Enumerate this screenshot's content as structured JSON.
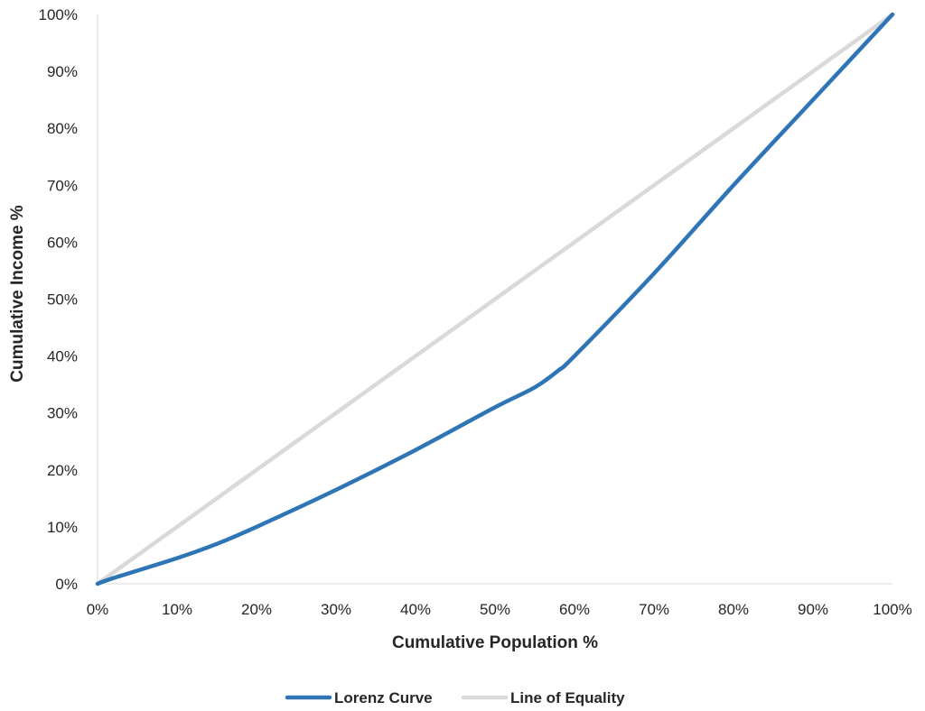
{
  "chart_data": {
    "type": "line",
    "title": "",
    "xlabel": "Cumulative Population %",
    "ylabel": "Cumulative Income %",
    "xlim": [
      0,
      100
    ],
    "ylim": [
      0,
      100
    ],
    "x_ticks": [
      "0%",
      "10%",
      "20%",
      "30%",
      "40%",
      "50%",
      "60%",
      "70%",
      "80%",
      "90%",
      "100%"
    ],
    "y_ticks": [
      "0%",
      "10%",
      "20%",
      "30%",
      "40%",
      "50%",
      "60%",
      "70%",
      "80%",
      "90%",
      "100%"
    ],
    "grid": false,
    "legend_position": "bottom",
    "series": [
      {
        "name": "Lorenz Curve",
        "color": "#2e75b6",
        "x": [
          0,
          2,
          10,
          15,
          20,
          30,
          40,
          50,
          55,
          58,
          60,
          70,
          80,
          90,
          100
        ],
        "y": [
          0,
          1,
          4.5,
          7,
          10,
          16.5,
          23.5,
          31,
          34.5,
          37.5,
          40,
          54.5,
          70,
          85,
          100
        ]
      },
      {
        "name": "Line of Equality",
        "color": "#d9d9d9",
        "x": [
          0,
          100
        ],
        "y": [
          0,
          100
        ]
      }
    ]
  }
}
